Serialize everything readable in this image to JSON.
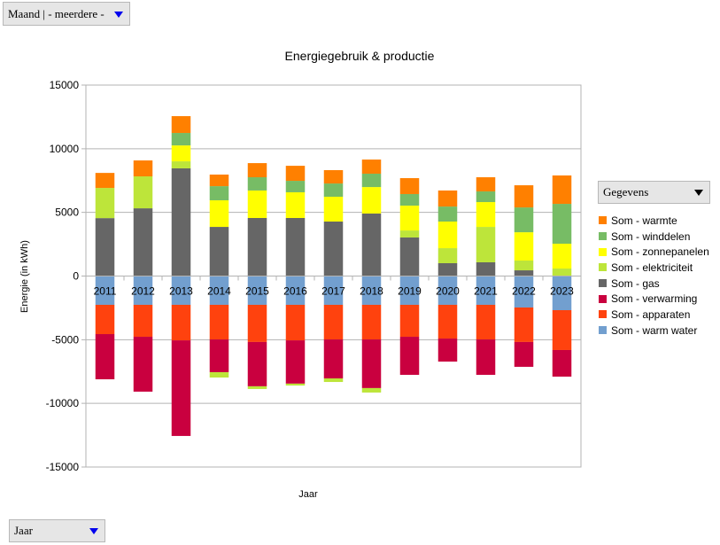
{
  "filters": {
    "page_filter": "Maand | - meerdere -",
    "row_field": "Jaar",
    "data_field": "Gegevens"
  },
  "chart_data": {
    "type": "bar",
    "stacked": true,
    "title": "Energiegebruik & productie",
    "xlabel": "Jaar",
    "ylabel": "Energie (in kWh)",
    "ylim": [
      -15000,
      15000
    ],
    "yticks": [
      15000,
      10000,
      5000,
      0,
      -5000,
      -10000,
      -15000
    ],
    "grid": true,
    "legend_position": "right",
    "categories": [
      "2011",
      "2012",
      "2013",
      "2014",
      "2015",
      "2016",
      "2017",
      "2018",
      "2019",
      "2020",
      "2021",
      "2022",
      "2023"
    ],
    "series": [
      {
        "name": "Som - warmte",
        "color": "#ff8000",
        "values": [
          1180,
          1250,
          1320,
          910,
          1110,
          1180,
          1050,
          1110,
          1250,
          1260,
          1110,
          1740,
          2230
        ]
      },
      {
        "name": "Som - winddelen",
        "color": "#77bc65",
        "values": [
          0,
          0,
          980,
          1110,
          1040,
          900,
          1040,
          1050,
          910,
          1180,
          840,
          1950,
          3130
        ]
      },
      {
        "name": "Som - zonnepanelen",
        "color": "#ffff00",
        "values": [
          0,
          0,
          1250,
          2090,
          2160,
          2020,
          1950,
          2080,
          1950,
          2090,
          1950,
          2220,
          1950
        ]
      },
      {
        "name": "Som - elektriciteit",
        "color": "#bde53a",
        "values": [
          2370,
          2510,
          550,
          -420,
          -210,
          -150,
          -280,
          -350,
          550,
          1180,
          2780,
          770,
          590
        ]
      },
      {
        "name": "Som - gas",
        "color": "#666666",
        "values": [
          4550,
          5320,
          8460,
          3860,
          4560,
          4560,
          4280,
          4910,
          3030,
          1010,
          1080,
          450,
          0
        ]
      },
      {
        "name": "Som - verwarming",
        "color": "#c9003f",
        "values": [
          -3550,
          -4310,
          -7510,
          -2570,
          -3480,
          -3400,
          -3060,
          -3820,
          -2990,
          -1810,
          -2780,
          -1950,
          -2090
        ]
      },
      {
        "name": "Som - apparaten",
        "color": "#ff420e",
        "values": [
          -2300,
          -2510,
          -2790,
          -2720,
          -2920,
          -2790,
          -2720,
          -2720,
          -2510,
          -2650,
          -2720,
          -2710,
          -3130
        ]
      },
      {
        "name": "Som - warm water",
        "color": "#729fcf",
        "values": [
          -2260,
          -2260,
          -2260,
          -2260,
          -2260,
          -2260,
          -2260,
          -2260,
          -2260,
          -2260,
          -2260,
          -2470,
          -2680
        ]
      }
    ]
  }
}
